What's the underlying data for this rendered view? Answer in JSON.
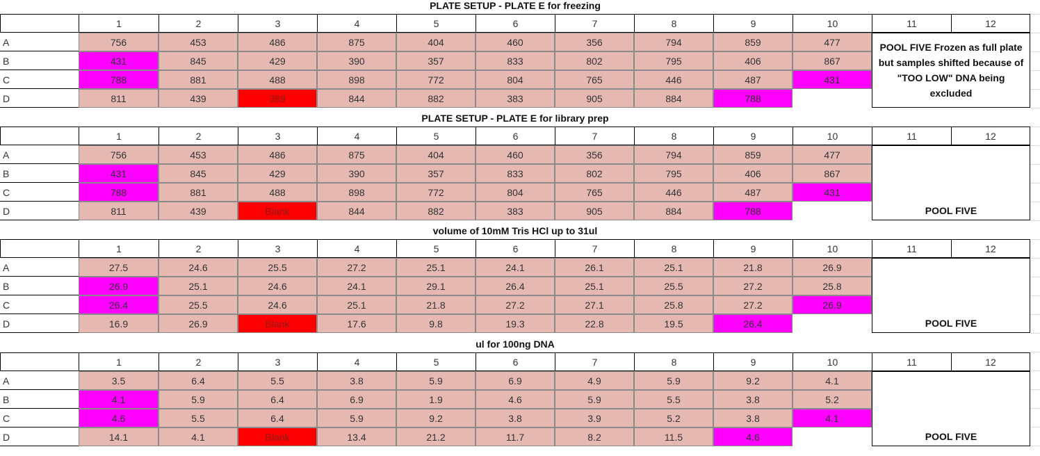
{
  "colors": {
    "pink": "#e6b8b2",
    "magenta": "#ff00ff",
    "red": "#ff0000"
  },
  "columns": [
    "1",
    "2",
    "3",
    "4",
    "5",
    "6",
    "7",
    "8",
    "9",
    "10",
    "11",
    "12"
  ],
  "rows": [
    "A",
    "B",
    "C",
    "D"
  ],
  "sections": [
    {
      "title": "PLATE SETUP - PLATE E for freezing",
      "note": "POOL FIVE Frozen as full plate but samples shifted because of \"TOO LOW\" DNA being excluded",
      "note_bottom": false,
      "data": [
        [
          "756",
          "453",
          "486",
          "875",
          "404",
          "460",
          "356",
          "794",
          "859",
          "477"
        ],
        [
          "431",
          "845",
          "429",
          "390",
          "357",
          "833",
          "802",
          "795",
          "406",
          "867"
        ],
        [
          "788",
          "881",
          "488",
          "898",
          "772",
          "804",
          "765",
          "446",
          "487",
          "431"
        ],
        [
          "811",
          "439",
          "389",
          "844",
          "882",
          "383",
          "905",
          "884",
          "788",
          ""
        ]
      ]
    },
    {
      "title": "PLATE SETUP - PLATE E for library prep",
      "note": "POOL FIVE",
      "note_bottom": true,
      "data": [
        [
          "756",
          "453",
          "486",
          "875",
          "404",
          "460",
          "356",
          "794",
          "859",
          "477"
        ],
        [
          "431",
          "845",
          "429",
          "390",
          "357",
          "833",
          "802",
          "795",
          "406",
          "867"
        ],
        [
          "788",
          "881",
          "488",
          "898",
          "772",
          "804",
          "765",
          "446",
          "487",
          "431"
        ],
        [
          "811",
          "439",
          "Blank",
          "844",
          "882",
          "383",
          "905",
          "884",
          "788",
          ""
        ]
      ]
    },
    {
      "title": "volume of 10mM Tris HCl up to 31ul",
      "note": "POOL FIVE",
      "note_bottom": true,
      "data": [
        [
          "27.5",
          "24.6",
          "25.5",
          "27.2",
          "25.1",
          "24.1",
          "26.1",
          "25.1",
          "21.8",
          "26.9"
        ],
        [
          "26.9",
          "25.1",
          "24.6",
          "24.1",
          "29.1",
          "26.4",
          "25.1",
          "25.5",
          "27.2",
          "25.8"
        ],
        [
          "26.4",
          "25.5",
          "24.6",
          "25.1",
          "21.8",
          "27.2",
          "27.1",
          "25.8",
          "27.2",
          "26.9"
        ],
        [
          "16.9",
          "26.9",
          "Blank",
          "17.6",
          "9.8",
          "19.3",
          "22.8",
          "19.5",
          "26.4",
          ""
        ]
      ]
    },
    {
      "title": "ul for 100ng DNA",
      "note": "POOL FIVE",
      "note_bottom": true,
      "data": [
        [
          "3.5",
          "6.4",
          "5.5",
          "3.8",
          "5.9",
          "6.9",
          "4.9",
          "5.9",
          "9.2",
          "4.1"
        ],
        [
          "4.1",
          "5.9",
          "6.4",
          "6.9",
          "1.9",
          "4.6",
          "5.9",
          "5.5",
          "3.8",
          "5.2"
        ],
        [
          "4.6",
          "5.5",
          "6.4",
          "5.9",
          "9.2",
          "3.8",
          "3.9",
          "5.2",
          "3.8",
          "4.1"
        ],
        [
          "14.1",
          "4.1",
          "Blank",
          "13.4",
          "21.2",
          "11.7",
          "8.2",
          "11.5",
          "4.6",
          ""
        ]
      ]
    }
  ]
}
